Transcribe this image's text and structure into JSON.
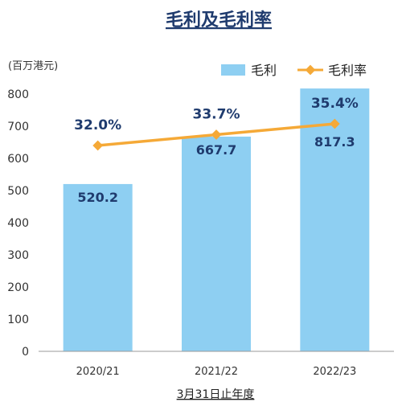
{
  "chart_data": {
    "type": "bar",
    "title": "毛利及毛利率",
    "unit_label": "(百万港元)",
    "xlabel": "3月31日止年度",
    "categories": [
      "2020/21",
      "2021/22",
      "2022/23"
    ],
    "ylim": [
      0,
      800
    ],
    "yticks": [
      0,
      100,
      200,
      300,
      400,
      500,
      600,
      700,
      800
    ],
    "series": [
      {
        "name": "毛利",
        "kind": "bar",
        "color": "#8ecff2",
        "values": [
          520.2,
          667.7,
          817.3
        ],
        "labels": [
          "520.2",
          "667.7",
          "817.3"
        ]
      },
      {
        "name": "毛利率",
        "kind": "line",
        "color": "#f5a937",
        "values": [
          32.0,
          33.7,
          35.4
        ],
        "labels": [
          "32.0%",
          "33.7%",
          "35.4%"
        ]
      }
    ],
    "legend_position": "top-right",
    "grid": false
  }
}
